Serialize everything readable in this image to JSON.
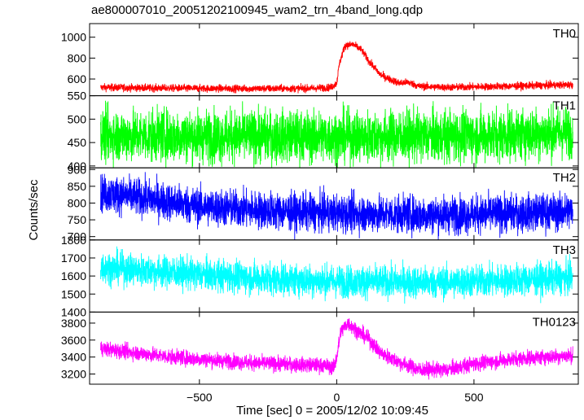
{
  "chart_data": {
    "type": "line",
    "title": "ae800007010_20051202100945_wam2_trn_4band_long.qdp",
    "xlabel": "Time [sec] 0 = 2005/12/02 10:09:45",
    "ylabel": "Counts/sec",
    "xlim": [
      -900,
      880
    ],
    "x_ticks": [
      -500,
      0,
      500
    ],
    "x_tick_labels": [
      "−500",
      "0",
      "500"
    ],
    "grid": false,
    "panels": [
      {
        "name": "TH0",
        "color": "#ff0000",
        "ylim": [
          440,
          1130
        ],
        "y_ticks": [
          600,
          800,
          1000
        ],
        "y_tick_labels": [
          "600",
          "800",
          "1000"
        ],
        "profile": [
          [
            -860,
            520
          ],
          [
            -700,
            515
          ],
          [
            -500,
            510
          ],
          [
            -300,
            508
          ],
          [
            -100,
            510
          ],
          [
            -20,
            520
          ],
          [
            0,
            560
          ],
          [
            10,
            750
          ],
          [
            30,
            920
          ],
          [
            60,
            930
          ],
          [
            90,
            880
          ],
          [
            120,
            760
          ],
          [
            160,
            640
          ],
          [
            200,
            590
          ],
          [
            230,
            560
          ],
          [
            260,
            570
          ],
          [
            300,
            530
          ],
          [
            400,
            520
          ],
          [
            600,
            530
          ],
          [
            860,
            545
          ]
        ],
        "noise": 18
      },
      {
        "name": "TH1",
        "color": "#00ff00",
        "ylim": [
          396,
          550
        ],
        "y_ticks": [
          400,
          450,
          500,
          550
        ],
        "y_tick_labels": [
          "400",
          "450",
          "500",
          "550"
        ],
        "profile": [
          [
            -860,
            465
          ],
          [
            0,
            462
          ],
          [
            500,
            465
          ],
          [
            860,
            472
          ]
        ],
        "noise": 28
      },
      {
        "name": "TH2",
        "color": "#0000ff",
        "ylim": [
          690,
          905
        ],
        "y_ticks": [
          700,
          750,
          800,
          850,
          900
        ],
        "y_tick_labels": [
          "700",
          "750",
          "800",
          "850",
          "900"
        ],
        "profile": [
          [
            -860,
            830
          ],
          [
            -700,
            815
          ],
          [
            -500,
            790
          ],
          [
            -200,
            775
          ],
          [
            0,
            770
          ],
          [
            300,
            765
          ],
          [
            600,
            768
          ],
          [
            860,
            775
          ]
        ],
        "noise": 28
      },
      {
        "name": "TH3",
        "color": "#00ffff",
        "ylim": [
          1400,
          1800
        ],
        "y_ticks": [
          1400,
          1500,
          1600,
          1700,
          1800
        ],
        "y_tick_labels": [
          "1400",
          "1500",
          "1600",
          "1700",
          "1800"
        ],
        "profile": [
          [
            -860,
            1650
          ],
          [
            -600,
            1620
          ],
          [
            -300,
            1590
          ],
          [
            0,
            1570
          ],
          [
            400,
            1565
          ],
          [
            860,
            1590
          ]
        ],
        "noise": 45
      },
      {
        "name": "TH0123",
        "color": "#ff00ff",
        "ylim": [
          3080,
          3930
        ],
        "y_ticks": [
          3200,
          3400,
          3600,
          3800
        ],
        "y_tick_labels": [
          "3200",
          "3400",
          "3600",
          "3800"
        ],
        "profile": [
          [
            -860,
            3500
          ],
          [
            -600,
            3400
          ],
          [
            -300,
            3330
          ],
          [
            -50,
            3300
          ],
          [
            -10,
            3280
          ],
          [
            0,
            3400
          ],
          [
            15,
            3700
          ],
          [
            40,
            3800
          ],
          [
            80,
            3700
          ],
          [
            120,
            3600
          ],
          [
            160,
            3450
          ],
          [
            220,
            3350
          ],
          [
            300,
            3250
          ],
          [
            400,
            3250
          ],
          [
            500,
            3320
          ],
          [
            650,
            3380
          ],
          [
            860,
            3420
          ]
        ],
        "noise": 45
      }
    ]
  }
}
